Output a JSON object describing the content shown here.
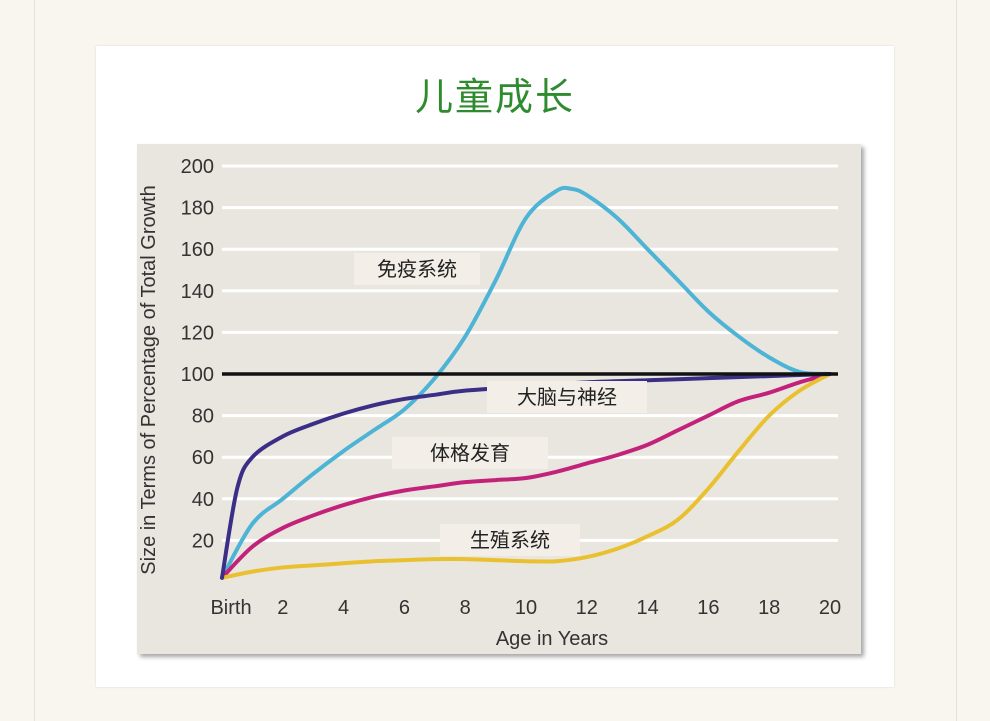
{
  "chart_data": {
    "type": "line",
    "title": "儿童成长",
    "xlabel": "Age in Years",
    "ylabel": "Size in Terms of Percentage of Total Growth",
    "x_ticks": [
      "Birth",
      "2",
      "4",
      "6",
      "8",
      "10",
      "12",
      "14",
      "16",
      "18",
      "20"
    ],
    "y_ticks": [
      "20",
      "40",
      "60",
      "80",
      "100",
      "120",
      "140",
      "160",
      "180",
      "200"
    ],
    "xlim": [
      0,
      20
    ],
    "ylim": [
      0,
      200
    ],
    "grid": true,
    "reference_line": {
      "y": 100,
      "color": "#111111"
    },
    "series": [
      {
        "name": "免疫系统",
        "color": "#4db4d6",
        "x": [
          0,
          1,
          2,
          3,
          4,
          5,
          6,
          7,
          8,
          9,
          10,
          11,
          11.5,
          12,
          13,
          14,
          15,
          16,
          17,
          18,
          19,
          20
        ],
        "y": [
          2,
          28,
          40,
          52,
          63,
          73,
          83,
          98,
          118,
          145,
          175,
          188,
          189,
          186,
          175,
          160,
          145,
          130,
          118,
          108,
          101,
          100
        ]
      },
      {
        "name": "大脑与神经",
        "color": "#3b2e86",
        "x": [
          0,
          0.5,
          1,
          2,
          3,
          4,
          5,
          6,
          7,
          8,
          10,
          12,
          14,
          16,
          18,
          20
        ],
        "y": [
          2,
          45,
          60,
          70,
          76,
          81,
          85,
          88,
          90,
          92,
          94,
          96,
          97,
          98,
          99,
          100
        ]
      },
      {
        "name": "体格发育",
        "color": "#c2227a",
        "x": [
          0,
          1,
          2,
          3,
          4,
          5,
          6,
          7,
          8,
          9,
          10,
          11,
          12,
          13,
          14,
          15,
          16,
          17,
          18,
          19,
          20
        ],
        "y": [
          2,
          17,
          26,
          32,
          37,
          41,
          44,
          46,
          48,
          49,
          50,
          53,
          57,
          61,
          66,
          73,
          80,
          87,
          91,
          96,
          100
        ]
      },
      {
        "name": "生殖系统",
        "color": "#e9c02f",
        "x": [
          0,
          1,
          2,
          3,
          4,
          5,
          6,
          7,
          8,
          9,
          10,
          11,
          12,
          13,
          14,
          15,
          16,
          17,
          18,
          19,
          20
        ],
        "y": [
          2,
          5,
          7,
          8,
          9,
          10,
          10.5,
          11,
          11,
          10.5,
          10,
          10,
          12,
          16,
          22,
          30,
          45,
          63,
          80,
          92,
          100
        ]
      }
    ],
    "annotations": [
      {
        "text": "免疫系统"
      },
      {
        "text": "大脑与神经"
      },
      {
        "text": "体格发育"
      },
      {
        "text": "生殖系统"
      }
    ]
  }
}
